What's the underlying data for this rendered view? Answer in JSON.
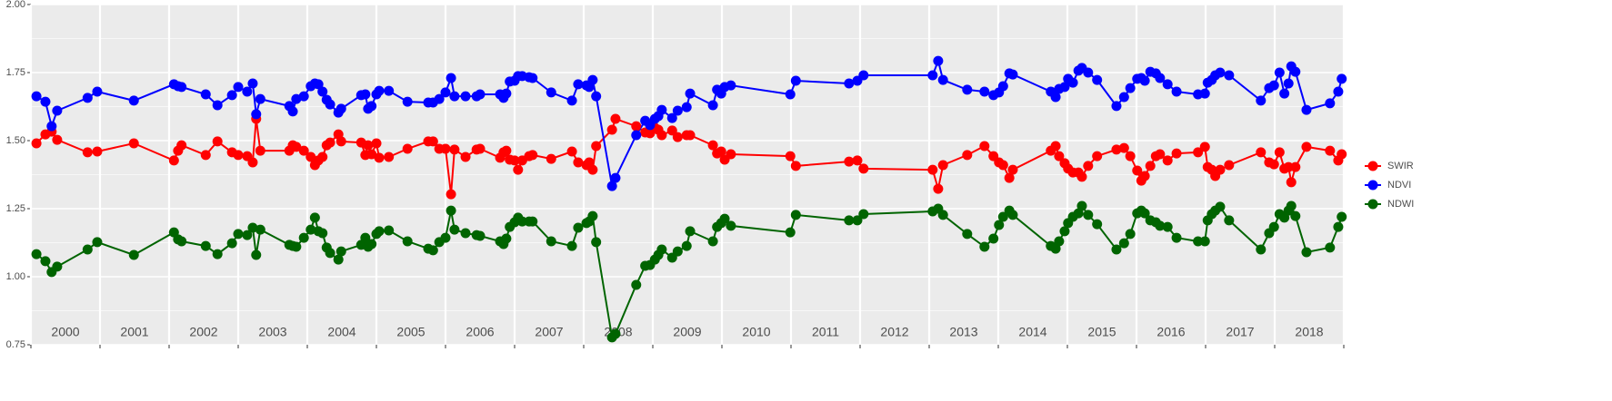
{
  "chart_data": {
    "type": "line",
    "year_labels": [
      "2000",
      "2001",
      "2002",
      "2003",
      "2004",
      "2005",
      "2006",
      "2007",
      "2008",
      "2009",
      "2010",
      "2011",
      "2012",
      "2013",
      "2014",
      "2015",
      "2016",
      "2017",
      "2018"
    ],
    "xlim": [
      2000,
      2019
    ],
    "xticks": [
      2000,
      2001,
      2002,
      2003,
      2004,
      2005,
      2006,
      2007,
      2008,
      2009,
      2010,
      2011,
      2012,
      2013,
      2014,
      2015,
      2016,
      2017,
      2018,
      2019
    ],
    "ylim": [
      0.75,
      2.0
    ],
    "yticks": [
      {
        "value": 0.75,
        "label": "0.75"
      },
      {
        "value": 1.0,
        "label": "1.00"
      },
      {
        "value": 1.25,
        "label": "1.25"
      },
      {
        "value": 1.5,
        "label": "1.50"
      },
      {
        "value": 1.75,
        "label": "1.75"
      },
      {
        "value": 2.0,
        "label": "2.00"
      }
    ],
    "y_minor_ticks": [
      0.875,
      1.125,
      1.375,
      1.625,
      1.875
    ],
    "grid": true,
    "legend": "right",
    "x": [
      2000.08,
      2000.21,
      2000.3,
      2000.38,
      2000.82,
      2000.96,
      2001.49,
      2002.07,
      2002.13,
      2002.18,
      2002.53,
      2002.7,
      2002.91,
      2003.0,
      2003.13,
      2003.21,
      2003.26,
      2003.32,
      2003.74,
      2003.79,
      2003.84,
      2003.95,
      2004.05,
      2004.11,
      2004.16,
      2004.22,
      2004.28,
      2004.33,
      2004.45,
      2004.49,
      2004.78,
      2004.84,
      2004.88,
      2004.93,
      2005.0,
      2005.04,
      2005.18,
      2005.45,
      2005.75,
      2005.82,
      2005.91,
      2006.0,
      2006.08,
      2006.13,
      2006.29,
      2006.45,
      2006.5,
      2006.79,
      2006.84,
      2006.88,
      2006.93,
      2007.0,
      2007.05,
      2007.11,
      2007.21,
      2007.26,
      2007.53,
      2007.83,
      2007.92,
      2008.04,
      2008.08,
      2008.13,
      2008.18,
      2008.41,
      2008.46,
      2008.76,
      2008.89,
      2008.96,
      2009.03,
      2009.08,
      2009.13,
      2009.28,
      2009.36,
      2009.49,
      2009.54,
      2009.87,
      2009.93,
      2009.99,
      2010.04,
      2010.13,
      2010.99,
      2011.07,
      2011.84,
      2011.96,
      2012.05,
      2013.05,
      2013.13,
      2013.2,
      2013.55,
      2013.8,
      2013.93,
      2014.01,
      2014.07,
      2014.16,
      2014.21,
      2014.76,
      2014.83,
      2014.88,
      2014.96,
      2015.01,
      2015.08,
      2015.16,
      2015.21,
      2015.3,
      2015.43,
      2015.71,
      2015.82,
      2015.91,
      2016.01,
      2016.07,
      2016.12,
      2016.2,
      2016.28,
      2016.34,
      2016.45,
      2016.58,
      2016.89,
      2016.99,
      2017.03,
      2017.09,
      2017.14,
      2017.21,
      2017.34,
      2017.8,
      2017.92,
      2017.99,
      2018.07,
      2018.14,
      2018.2,
      2018.24,
      2018.3,
      2018.46,
      2018.8,
      2018.92,
      2018.97
    ],
    "series": [
      {
        "name": "SWIR",
        "color": "#ff0000",
        "values": [
          1.49,
          1.523,
          1.533,
          1.503,
          1.457,
          1.46,
          1.49,
          1.427,
          1.463,
          1.483,
          1.447,
          1.497,
          1.457,
          1.447,
          1.443,
          1.42,
          1.58,
          1.463,
          1.463,
          1.483,
          1.477,
          1.463,
          1.44,
          1.41,
          1.427,
          1.44,
          1.483,
          1.493,
          1.523,
          1.497,
          1.493,
          1.447,
          1.483,
          1.45,
          1.49,
          1.437,
          1.44,
          1.47,
          1.497,
          1.497,
          1.47,
          1.47,
          1.303,
          1.467,
          1.44,
          1.467,
          1.47,
          1.437,
          1.457,
          1.463,
          1.43,
          1.427,
          1.393,
          1.427,
          1.443,
          1.447,
          1.433,
          1.46,
          1.42,
          1.41,
          1.42,
          1.393,
          1.48,
          1.54,
          1.58,
          1.553,
          1.53,
          1.527,
          1.547,
          1.54,
          1.52,
          1.537,
          1.513,
          1.52,
          1.52,
          1.483,
          1.453,
          1.46,
          1.43,
          1.45,
          1.443,
          1.407,
          1.423,
          1.427,
          1.397,
          1.393,
          1.323,
          1.41,
          1.447,
          1.48,
          1.443,
          1.42,
          1.41,
          1.363,
          1.393,
          1.463,
          1.48,
          1.443,
          1.417,
          1.397,
          1.383,
          1.383,
          1.367,
          1.407,
          1.443,
          1.467,
          1.473,
          1.443,
          1.39,
          1.353,
          1.37,
          1.407,
          1.443,
          1.45,
          1.427,
          1.453,
          1.457,
          1.477,
          1.403,
          1.393,
          1.37,
          1.393,
          1.41,
          1.457,
          1.42,
          1.413,
          1.457,
          1.397,
          1.403,
          1.347,
          1.403,
          1.477,
          1.463,
          1.427,
          1.45
        ]
      },
      {
        "name": "NDVI",
        "color": "#0000ff",
        "values": [
          1.663,
          1.643,
          1.553,
          1.61,
          1.657,
          1.68,
          1.647,
          1.707,
          1.7,
          1.697,
          1.67,
          1.63,
          1.667,
          1.697,
          1.68,
          1.71,
          1.597,
          1.653,
          1.627,
          1.607,
          1.653,
          1.663,
          1.7,
          1.71,
          1.707,
          1.68,
          1.65,
          1.633,
          1.603,
          1.617,
          1.667,
          1.67,
          1.617,
          1.627,
          1.67,
          1.683,
          1.683,
          1.643,
          1.64,
          1.64,
          1.653,
          1.677,
          1.73,
          1.663,
          1.663,
          1.663,
          1.67,
          1.67,
          1.657,
          1.673,
          1.717,
          1.72,
          1.737,
          1.737,
          1.733,
          1.73,
          1.677,
          1.647,
          1.707,
          1.703,
          1.697,
          1.723,
          1.663,
          1.333,
          1.363,
          1.52,
          1.573,
          1.557,
          1.58,
          1.59,
          1.613,
          1.583,
          1.61,
          1.623,
          1.673,
          1.63,
          1.687,
          1.673,
          1.697,
          1.703,
          1.67,
          1.72,
          1.71,
          1.72,
          1.74,
          1.74,
          1.793,
          1.723,
          1.687,
          1.68,
          1.667,
          1.677,
          1.7,
          1.747,
          1.743,
          1.68,
          1.66,
          1.69,
          1.697,
          1.727,
          1.713,
          1.757,
          1.767,
          1.75,
          1.723,
          1.627,
          1.66,
          1.693,
          1.727,
          1.73,
          1.72,
          1.753,
          1.747,
          1.73,
          1.707,
          1.68,
          1.67,
          1.673,
          1.713,
          1.723,
          1.74,
          1.75,
          1.74,
          1.647,
          1.693,
          1.703,
          1.75,
          1.673,
          1.71,
          1.773,
          1.753,
          1.613,
          1.637,
          1.68,
          1.727
        ]
      },
      {
        "name": "NDWI",
        "color": "#006400",
        "values": [
          1.083,
          1.057,
          1.017,
          1.037,
          1.1,
          1.127,
          1.08,
          1.163,
          1.137,
          1.13,
          1.113,
          1.083,
          1.123,
          1.157,
          1.153,
          1.18,
          1.08,
          1.173,
          1.117,
          1.113,
          1.11,
          1.143,
          1.173,
          1.217,
          1.167,
          1.16,
          1.107,
          1.087,
          1.063,
          1.093,
          1.117,
          1.143,
          1.11,
          1.12,
          1.157,
          1.167,
          1.17,
          1.13,
          1.103,
          1.097,
          1.127,
          1.143,
          1.243,
          1.173,
          1.16,
          1.153,
          1.15,
          1.13,
          1.12,
          1.14,
          1.183,
          1.2,
          1.217,
          1.203,
          1.203,
          1.203,
          1.13,
          1.113,
          1.18,
          1.197,
          1.203,
          1.223,
          1.127,
          0.777,
          0.79,
          0.97,
          1.04,
          1.043,
          1.063,
          1.08,
          1.1,
          1.07,
          1.093,
          1.113,
          1.167,
          1.13,
          1.183,
          1.197,
          1.213,
          1.187,
          1.163,
          1.227,
          1.207,
          1.207,
          1.23,
          1.24,
          1.25,
          1.227,
          1.157,
          1.11,
          1.14,
          1.19,
          1.22,
          1.243,
          1.227,
          1.113,
          1.103,
          1.13,
          1.167,
          1.197,
          1.22,
          1.233,
          1.26,
          1.227,
          1.193,
          1.1,
          1.123,
          1.157,
          1.233,
          1.243,
          1.233,
          1.207,
          1.2,
          1.187,
          1.183,
          1.143,
          1.13,
          1.13,
          1.207,
          1.23,
          1.243,
          1.257,
          1.207,
          1.1,
          1.16,
          1.183,
          1.23,
          1.217,
          1.243,
          1.26,
          1.223,
          1.09,
          1.107,
          1.183,
          1.22
        ]
      }
    ]
  }
}
